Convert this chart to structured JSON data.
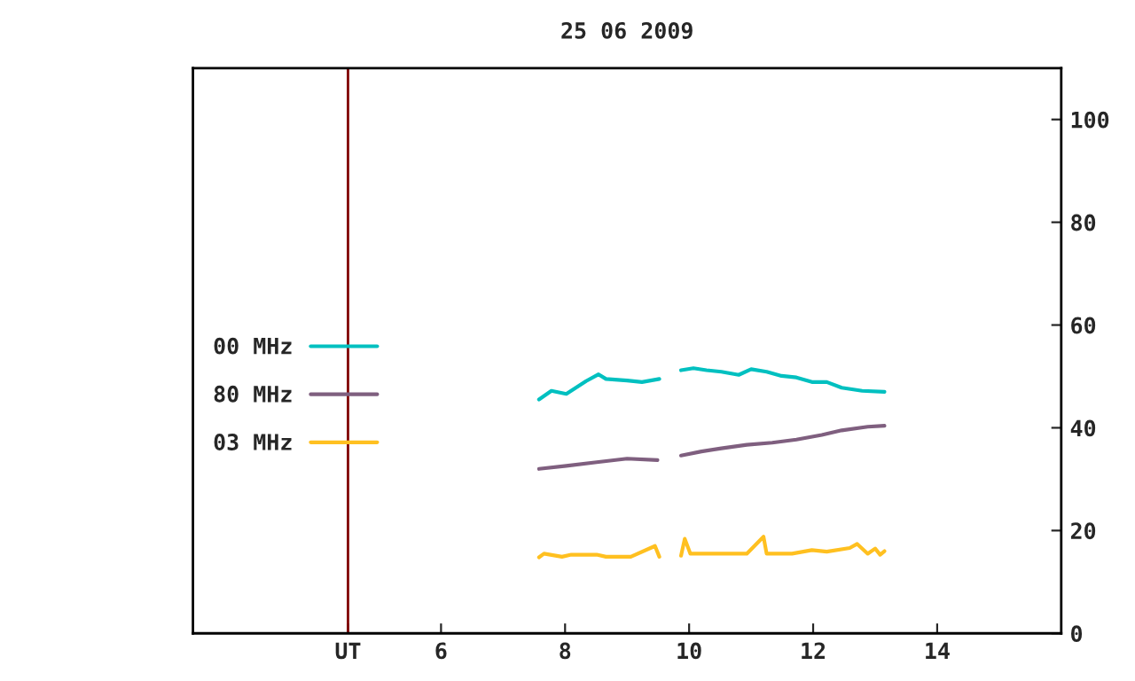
{
  "chart_data": {
    "type": "line",
    "title": "25 06 2009",
    "xlim": [
      2,
      16
    ],
    "xticks": [
      {
        "value": 4.5,
        "label": "UT"
      },
      6,
      8,
      10,
      12,
      14
    ],
    "ylim": [
      0,
      110
    ],
    "yticks": [
      0,
      20,
      40,
      60,
      80,
      100
    ],
    "grid": false,
    "legend": "left",
    "marker": "none",
    "line_style": "solid",
    "ref_lines": [
      {
        "axis": "x",
        "value": 4.5,
        "color": "#800000"
      }
    ],
    "series": [
      {
        "name": "00 MHz",
        "color": "#00c0c0",
        "x": [
          7.58,
          7.78,
          8.02,
          8.34,
          8.54,
          8.66,
          9.0,
          9.24,
          9.52,
          9.7,
          9.87,
          10.07,
          10.28,
          10.52,
          10.8,
          11.0,
          11.25,
          11.49,
          11.73,
          11.98,
          12.22,
          12.46,
          12.79,
          13.15
        ],
        "values": [
          45.5,
          47.2,
          46.6,
          49.1,
          50.4,
          49.5,
          49.2,
          48.9,
          49.5,
          null,
          51.2,
          51.6,
          51.2,
          50.9,
          50.3,
          51.4,
          50.9,
          50.1,
          49.8,
          48.9,
          48.9,
          47.8,
          47.2,
          47.0
        ]
      },
      {
        "name": "80 MHz",
        "color": "#7f5f7f",
        "x": [
          7.58,
          8.02,
          8.51,
          9.0,
          9.49,
          9.7,
          9.87,
          10.2,
          10.52,
          10.93,
          11.34,
          11.73,
          12.14,
          12.46,
          12.88,
          13.15
        ],
        "values": [
          32.0,
          32.6,
          33.3,
          34.0,
          33.7,
          null,
          34.6,
          35.4,
          36.0,
          36.7,
          37.1,
          37.7,
          38.6,
          39.5,
          40.2,
          40.4
        ]
      },
      {
        "name": "03 MHz",
        "color": "#ffc020",
        "x": [
          7.58,
          7.66,
          7.95,
          8.1,
          8.51,
          8.66,
          9.06,
          9.45,
          9.52,
          9.7,
          9.87,
          9.93,
          10.02,
          10.52,
          10.93,
          11.2,
          11.25,
          11.66,
          11.98,
          12.22,
          12.59,
          12.71,
          12.88,
          13.0,
          13.08,
          13.15
        ],
        "values": [
          14.8,
          15.5,
          14.9,
          15.3,
          15.3,
          14.9,
          14.9,
          17.0,
          14.9,
          null,
          15.1,
          18.4,
          15.5,
          15.5,
          15.5,
          18.8,
          15.5,
          15.5,
          16.2,
          15.9,
          16.6,
          17.4,
          15.5,
          16.5,
          15.3,
          16.0
        ]
      }
    ]
  }
}
